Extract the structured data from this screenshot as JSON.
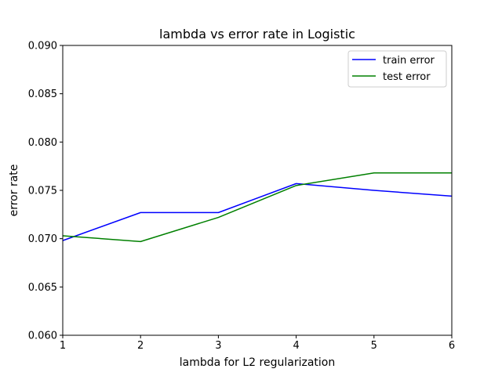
{
  "chart_data": {
    "type": "line",
    "title": "lambda vs error rate in Logistic",
    "xlabel": "lambda for L2 regularization",
    "ylabel": "error rate",
    "xlim": [
      1,
      6
    ],
    "ylim": [
      0.06,
      0.09
    ],
    "xticks": [
      1,
      2,
      3,
      4,
      5,
      6
    ],
    "xtick_labels": [
      "1",
      "2",
      "3",
      "4",
      "5",
      "6"
    ],
    "yticks": [
      0.06,
      0.065,
      0.07,
      0.075,
      0.08,
      0.085,
      0.09
    ],
    "ytick_labels": [
      "0.060",
      "0.065",
      "0.070",
      "0.075",
      "0.080",
      "0.085",
      "0.090"
    ],
    "grid": false,
    "legend_position": "upper right",
    "x": [
      1,
      2,
      3,
      4,
      5,
      6
    ],
    "series": [
      {
        "name": "train error",
        "color": "#0000ff",
        "values": [
          0.0698,
          0.0727,
          0.0727,
          0.0757,
          0.075,
          0.0744
        ]
      },
      {
        "name": "test error",
        "color": "#008000",
        "values": [
          0.0703,
          0.0697,
          0.0722,
          0.0755,
          0.0768,
          0.0768
        ]
      }
    ]
  }
}
